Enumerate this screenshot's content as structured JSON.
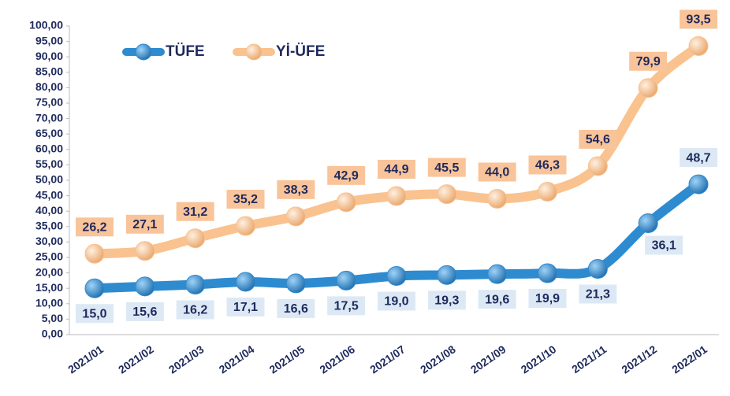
{
  "chart_data": {
    "type": "line",
    "categories": [
      "2021/01",
      "2021/02",
      "2021/03",
      "2021/04",
      "2021/05",
      "2021/06",
      "2021/07",
      "2021/08",
      "2021/09",
      "2021/10",
      "2021/11",
      "2021/12",
      "2022/01"
    ],
    "series": [
      {
        "name": "TÜFE",
        "color": "#2e8bd0",
        "label_color": "#dce9f5",
        "values": [
          15.0,
          15.6,
          16.2,
          17.1,
          16.6,
          17.5,
          19.0,
          19.3,
          19.6,
          19.9,
          21.3,
          36.1,
          48.7
        ],
        "value_labels": [
          "15,0",
          "15,6",
          "16,2",
          "17,1",
          "16,6",
          "17,5",
          "19,0",
          "19,3",
          "19,6",
          "19,9",
          "21,3",
          "36,1",
          "48,7"
        ]
      },
      {
        "name": "Yİ-ÜFE",
        "color": "#f9c28f",
        "label_color": "#f9c49a",
        "values": [
          26.2,
          27.1,
          31.2,
          35.2,
          38.3,
          42.9,
          44.9,
          45.5,
          44.0,
          46.3,
          54.6,
          79.9,
          93.5
        ],
        "value_labels": [
          "26,2",
          "27,1",
          "31,2",
          "35,2",
          "38,3",
          "42,9",
          "44,9",
          "45,5",
          "44,0",
          "46,3",
          "54,6",
          "79,9",
          "93,5"
        ]
      }
    ],
    "ylim": [
      0,
      100
    ],
    "yticks": [
      {
        "value": 0,
        "label": "0,00"
      },
      {
        "value": 5,
        "label": "5,00"
      },
      {
        "value": 10,
        "label": "10,00"
      },
      {
        "value": 15,
        "label": "15,00"
      },
      {
        "value": 20,
        "label": "20,00"
      },
      {
        "value": 25,
        "label": "25,00"
      },
      {
        "value": 30,
        "label": "30,00"
      },
      {
        "value": 35,
        "label": "35,00"
      },
      {
        "value": 40,
        "label": "40,00"
      },
      {
        "value": 45,
        "label": "45,00"
      },
      {
        "value": 50,
        "label": "50,00"
      },
      {
        "value": 55,
        "label": "55,00"
      },
      {
        "value": 60,
        "label": "60,00"
      },
      {
        "value": 65,
        "label": "65,00"
      },
      {
        "value": 70,
        "label": "70,00"
      },
      {
        "value": 75,
        "label": "75,00"
      },
      {
        "value": 80,
        "label": "80,00"
      },
      {
        "value": 85,
        "label": "85,00"
      },
      {
        "value": 90,
        "label": "90,00"
      },
      {
        "value": 95,
        "label": "95,00"
      },
      {
        "value": 100,
        "label": "100,00"
      }
    ],
    "legend": "top-left"
  }
}
